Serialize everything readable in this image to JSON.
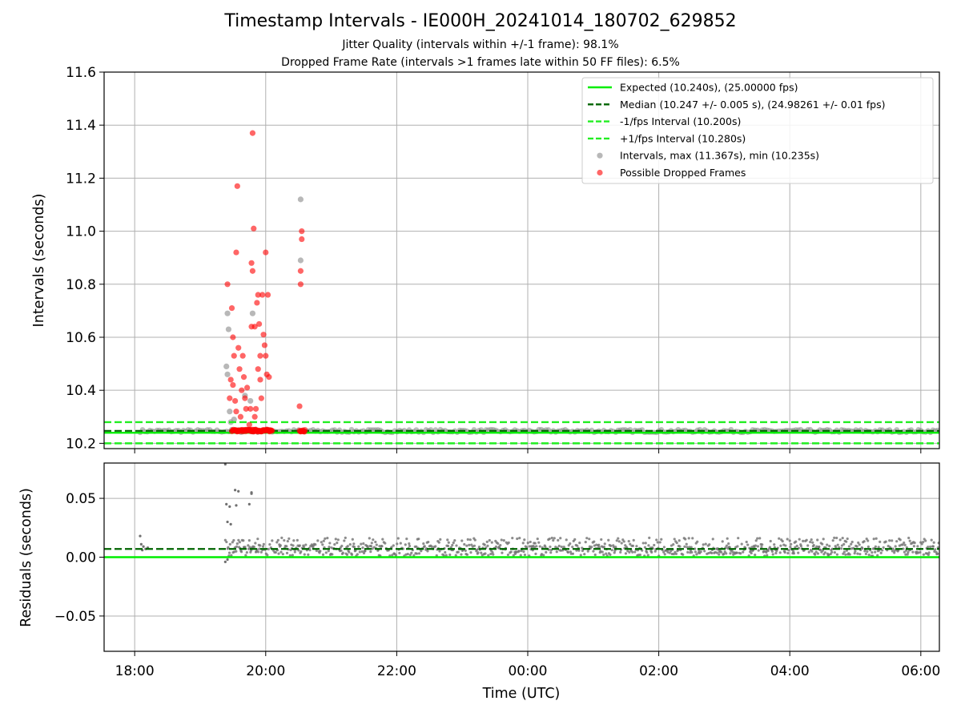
{
  "title": "Timestamp Intervals - IE000H_20241014_180702_629852",
  "subtitle_1": "Jitter Quality (intervals within +/-1 frame): 98.1%",
  "subtitle_2": "Dropped Frame Rate (intervals >1 frames late within 50 FF files): 6.5%",
  "colors": {
    "expected": "#00ee00",
    "median": "#006400",
    "interval": "#22ee22",
    "intervals_points": "#888888",
    "dropped": "#ff0000",
    "residuals": "#707070"
  },
  "chart_data": [
    {
      "type": "scatter",
      "panel": "top",
      "xlabel": "",
      "ylabel": "Intervals (seconds)",
      "ylim": [
        10.18,
        11.6
      ],
      "xlim": [
        "17:32",
        "06:17"
      ],
      "yticks": [
        "10.2",
        "10.4",
        "10.6",
        "10.8",
        "11.0",
        "11.2",
        "11.4",
        "11.6"
      ],
      "grid": true,
      "legend_position": "top-right",
      "legend": [
        {
          "label": "Expected (10.240s), (25.00000 fps)",
          "style": "solid",
          "color": "#00ee00"
        },
        {
          "label": "Median (10.247 +/- 0.005 s), (24.98261 +/- 0.01 fps)",
          "style": "dashed",
          "color": "#006400"
        },
        {
          "label": "-1/fps Interval (10.200s)",
          "style": "dashed",
          "color": "#22ee22"
        },
        {
          "label": "+1/fps Interval (10.280s)",
          "style": "dashed",
          "color": "#22ee22"
        },
        {
          "label": "Intervals, max (11.367s), min (10.235s)",
          "style": "marker",
          "color": "#888888"
        },
        {
          "label": "Possible Dropped Frames",
          "style": "marker",
          "color": "#ff0000"
        }
      ],
      "hlines": {
        "expected": 10.24,
        "median": 10.247,
        "minus_1fps": 10.2,
        "plus_1fps": 10.28
      },
      "dropped_frames": [
        [
          "19:25",
          10.8
        ],
        [
          "19:27",
          10.37
        ],
        [
          "19:28",
          10.44
        ],
        [
          "19:29",
          10.71
        ],
        [
          "19:30",
          10.42
        ],
        [
          "19:30",
          10.6
        ],
        [
          "19:31",
          10.53
        ],
        [
          "19:32",
          10.36
        ],
        [
          "19:33",
          10.32
        ],
        [
          "19:33",
          10.92
        ],
        [
          "19:34",
          11.17
        ],
        [
          "19:35",
          10.56
        ],
        [
          "19:36",
          10.48
        ],
        [
          "19:37",
          10.3
        ],
        [
          "19:38",
          10.4
        ],
        [
          "19:39",
          10.53
        ],
        [
          "19:40",
          10.45
        ],
        [
          "19:41",
          10.37
        ],
        [
          "19:42",
          10.33
        ],
        [
          "19:43",
          10.41
        ],
        [
          "19:45",
          10.27
        ],
        [
          "19:46",
          10.33
        ],
        [
          "19:47",
          10.64
        ],
        [
          "19:47",
          10.88
        ],
        [
          "19:48",
          10.85
        ],
        [
          "19:48",
          11.37
        ],
        [
          "19:49",
          11.01
        ],
        [
          "19:50",
          10.3
        ],
        [
          "19:50",
          10.64
        ],
        [
          "19:51",
          10.33
        ],
        [
          "19:52",
          10.73
        ],
        [
          "19:53",
          10.48
        ],
        [
          "19:53",
          10.76
        ],
        [
          "19:54",
          10.65
        ],
        [
          "19:55",
          10.44
        ],
        [
          "19:55",
          10.53
        ],
        [
          "19:56",
          10.37
        ],
        [
          "19:57",
          10.76
        ],
        [
          "19:58",
          10.61
        ],
        [
          "19:59",
          10.57
        ],
        [
          "20:00",
          10.92
        ],
        [
          "20:00",
          10.53
        ],
        [
          "20:01",
          10.46
        ],
        [
          "20:02",
          10.76
        ],
        [
          "20:03",
          10.45
        ],
        [
          "20:31",
          10.34
        ],
        [
          "20:32",
          10.8
        ],
        [
          "20:32",
          10.85
        ],
        [
          "20:33",
          11.0
        ],
        [
          "20:33",
          10.97
        ]
      ],
      "intervals_highlights": [
        [
          "19:24",
          10.49
        ],
        [
          "19:25",
          10.46
        ],
        [
          "19:25",
          10.69
        ],
        [
          "19:26",
          10.63
        ],
        [
          "19:27",
          10.32
        ],
        [
          "19:28",
          10.28
        ],
        [
          "19:31",
          10.29
        ],
        [
          "19:41",
          10.38
        ],
        [
          "19:46",
          10.36
        ],
        [
          "19:48",
          10.69
        ],
        [
          "20:32",
          11.12
        ],
        [
          "20:32",
          10.89
        ]
      ]
    },
    {
      "type": "scatter",
      "panel": "bottom",
      "xlabel": "Time (UTC)",
      "ylabel": "Residuals (seconds)",
      "ylim": [
        -0.08,
        0.08
      ],
      "yticks": [
        "−0.05",
        "0.00",
        "0.05"
      ],
      "xticks": [
        "18:00",
        "20:00",
        "22:00",
        "00:00",
        "02:00",
        "04:00",
        "06:00"
      ],
      "grid": true,
      "hlines": {
        "expected": 0.0,
        "median": 0.007
      },
      "outliers": [
        [
          "19:23",
          0.079
        ],
        [
          "19:24",
          0.045
        ],
        [
          "19:25",
          0.03
        ],
        [
          "19:27",
          0.043
        ],
        [
          "19:28",
          0.028
        ],
        [
          "19:32",
          0.057
        ],
        [
          "19:33",
          0.044
        ],
        [
          "19:35",
          0.056
        ],
        [
          "19:45",
          0.045
        ],
        [
          "19:47",
          0.055
        ],
        [
          "19:47",
          0.054
        ],
        [
          "19:23",
          -0.004
        ],
        [
          "19:25",
          -0.002
        ]
      ]
    }
  ]
}
